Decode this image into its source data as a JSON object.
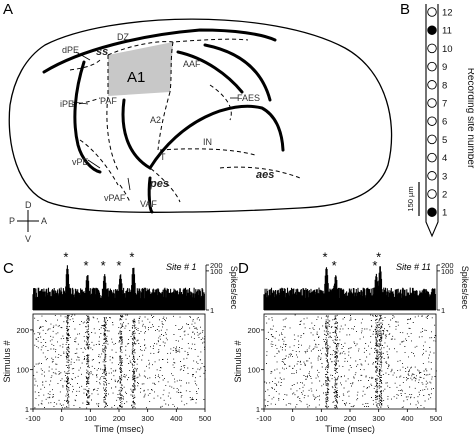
{
  "panel_a": {
    "letter": "A",
    "areas": {
      "a1": "A1",
      "dz": "DZ",
      "aaf": "AAF",
      "paf": "PAF",
      "faes": "FAES",
      "a2": "A2",
      "in": "IN",
      "t": "T",
      "dpe": "dPE",
      "ipe": "iPE",
      "vpe": "vPE",
      "vpaf": "vPAF",
      "vaf": "VAF"
    },
    "sulci": {
      "ss": "ss",
      "aes": "aes",
      "pes": "pes"
    },
    "orientation": {
      "d": "D",
      "v": "V",
      "p": "P",
      "a": "A"
    }
  },
  "panel_b": {
    "letter": "B",
    "axis_label": "Recording site number",
    "site_numbers": [
      "12",
      "11",
      "10",
      "9",
      "8",
      "7",
      "6",
      "5",
      "4",
      "3",
      "2",
      "1"
    ],
    "filled_sites": [
      "11",
      "1"
    ],
    "scale_label": "150 µm"
  },
  "panel_c": {
    "letter": "C",
    "site_label": "Site # 1",
    "x_ticks": [
      "-100",
      "0",
      "100",
      "200",
      "300",
      "400",
      "500"
    ],
    "x_label": "Time (msec)",
    "psth_y_ticks": [
      "200",
      "100",
      "1"
    ],
    "psth_y_label": "Spikes/sec",
    "raster_y_ticks": [
      "200",
      "100",
      "1"
    ],
    "raster_y_label": "Stimulus #",
    "star_glyph": "*",
    "star_times_msec": [
      20,
      90,
      150,
      205,
      250
    ]
  },
  "panel_d": {
    "letter": "D",
    "site_label": "Site # 11",
    "x_ticks": [
      "-100",
      "0",
      "100",
      "200",
      "300",
      "400",
      "500"
    ],
    "x_label": "Time (msec)",
    "psth_y_ticks": [
      "200",
      "100",
      "1"
    ],
    "psth_y_label": "Spikes/sec",
    "raster_y_ticks": [
      "200",
      "100",
      "1"
    ],
    "raster_y_label": "Stimulus #",
    "star_glyph": "*",
    "star_times_msec": [
      118,
      150,
      292,
      305
    ]
  }
}
